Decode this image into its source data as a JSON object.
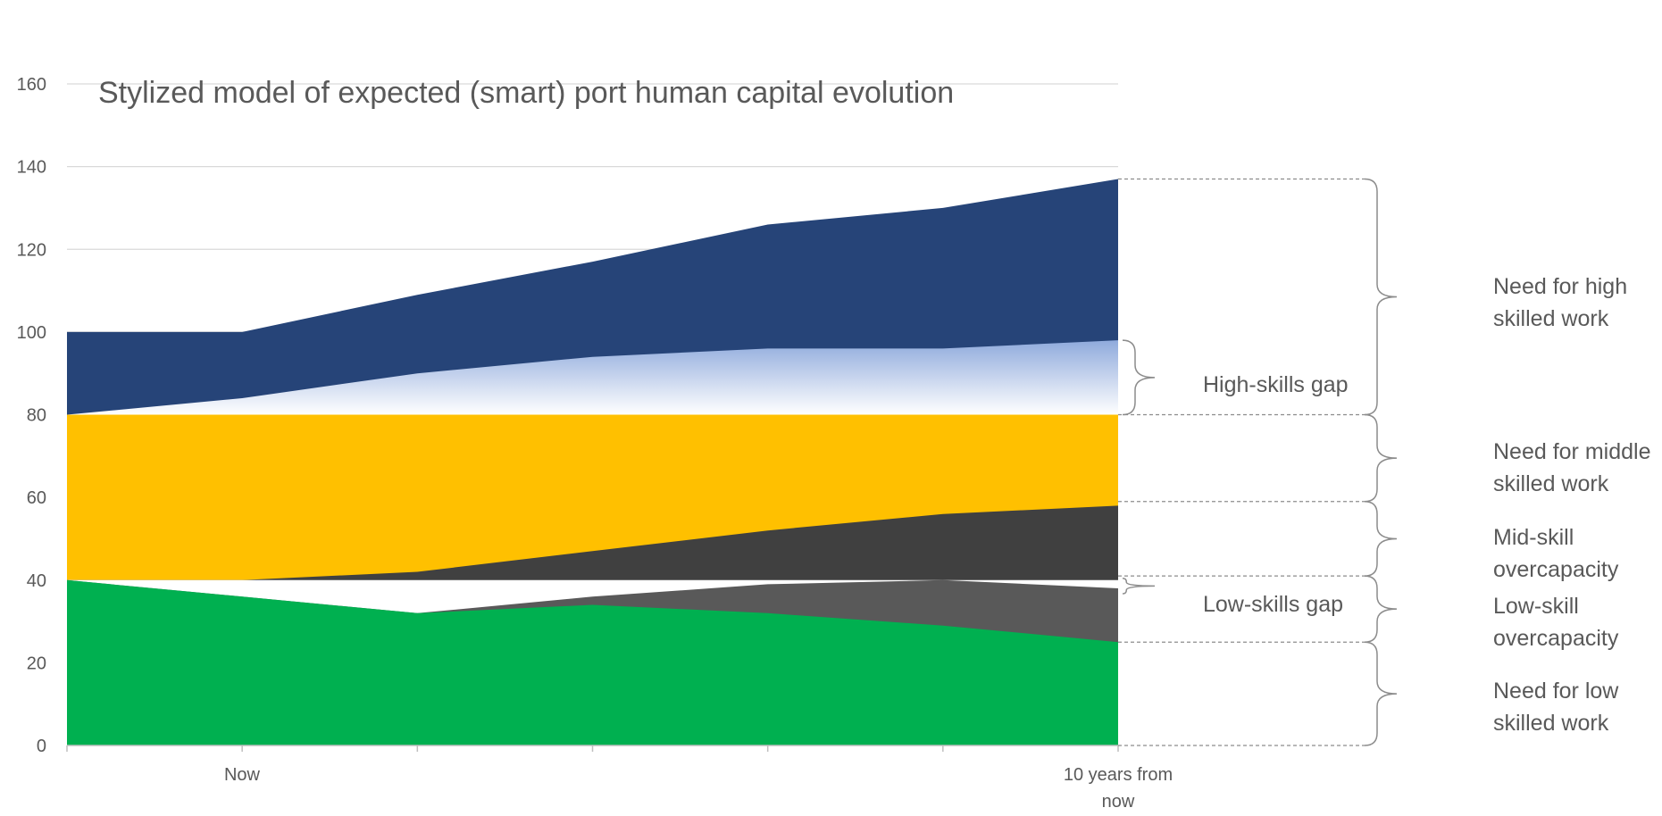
{
  "chart_data": {
    "type": "area",
    "title": "Stylized model of expected (smart) port human capital evolution",
    "xlabel": "",
    "ylabel": "",
    "ylim": [
      0,
      160
    ],
    "yticks": [
      0,
      20,
      40,
      60,
      80,
      100,
      120,
      140,
      160
    ],
    "x": [
      0,
      1,
      2,
      3,
      4,
      5,
      6
    ],
    "x_tick_labels": [
      "Now",
      "",
      "",
      "",
      "",
      "",
      "10 years from now"
    ],
    "grid": true,
    "series": [
      {
        "color": "#00b050",
        "values": [
          40,
          36,
          32,
          34,
          32,
          29,
          25
        ]
      },
      {
        "color": "#595959",
        "values": [
          40,
          36,
          32,
          36,
          39,
          40,
          38
        ]
      },
      {
        "color": "#ffffff",
        "values": [
          40,
          40,
          40,
          40,
          40,
          40,
          40
        ]
      },
      {
        "color": "#404040",
        "values": [
          40,
          40,
          42,
          47,
          52,
          56,
          58
        ]
      },
      {
        "color": "#ffc000",
        "values": [
          80,
          80,
          80,
          80,
          80,
          80,
          80
        ]
      },
      {
        "color": "#aabfe6",
        "values": [
          80,
          84,
          90,
          94,
          96,
          96,
          98
        ]
      },
      {
        "color": "#264478",
        "values": [
          100,
          100,
          109,
          117,
          126,
          130,
          137
        ]
      }
    ],
    "annotations": {
      "high_need": {
        "lines": [
          "Need for high",
          "skilled work"
        ],
        "from": 80,
        "to": 137
      },
      "high_gap": {
        "lines": [
          "High-skills gap"
        ],
        "from": 80,
        "to": 98
      },
      "mid_need": {
        "lines": [
          "Need for middle",
          "skilled work"
        ],
        "from": 59,
        "to": 80
      },
      "mid_over": {
        "lines": [
          "Mid-skill",
          "overcapacity"
        ],
        "from": 41,
        "to": 59
      },
      "low_gap": {
        "lines": [
          "Low-skills gap"
        ],
        "from": 38,
        "to": 40
      },
      "low_over": {
        "lines": [
          "Low-skill",
          "overcapacity"
        ],
        "from": 25,
        "to": 41
      },
      "low_need": {
        "lines": [
          "Need for low",
          "skilled work"
        ],
        "from": 0,
        "to": 25
      }
    }
  }
}
